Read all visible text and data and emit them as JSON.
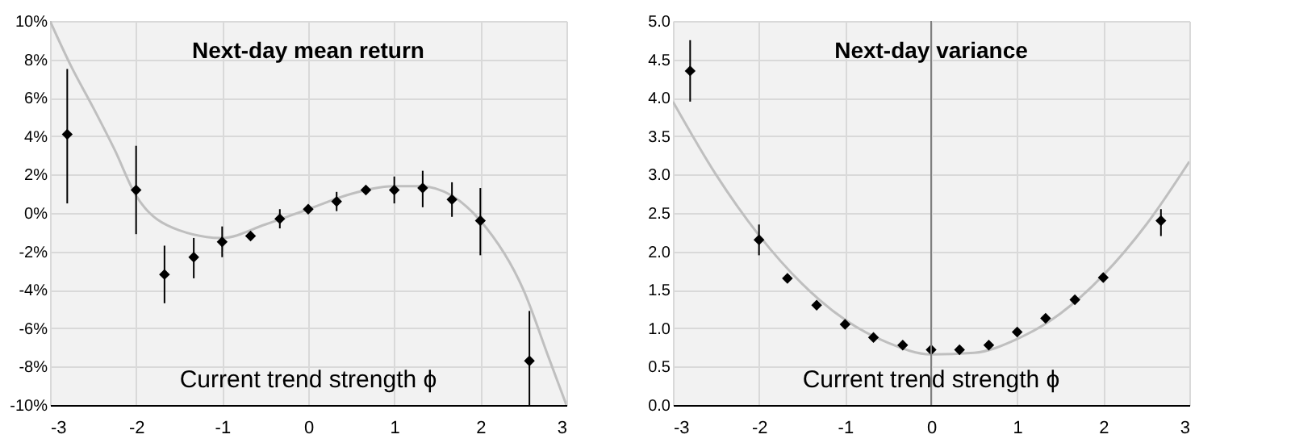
{
  "chart_data": [
    {
      "type": "scatter",
      "title": "Next-day mean return",
      "xlabel": "Current trend strength ϕ",
      "grid": true,
      "xlim": [
        -3,
        3
      ],
      "xticks": [
        -3,
        -2,
        -1,
        0,
        1,
        2,
        3
      ],
      "ylim": [
        -10,
        10
      ],
      "yticks": [
        {
          "value": -10,
          "label": "-10%"
        },
        {
          "value": -8,
          "label": "-8%"
        },
        {
          "value": -6,
          "label": "-6%"
        },
        {
          "value": -4,
          "label": "-4%"
        },
        {
          "value": -2,
          "label": "-2%"
        },
        {
          "value": 0,
          "label": "0%"
        },
        {
          "value": 2,
          "label": "2%"
        },
        {
          "value": 4,
          "label": "4%"
        },
        {
          "value": 6,
          "label": "6%"
        },
        {
          "value": 8,
          "label": "8%"
        },
        {
          "value": 10,
          "label": "10%"
        }
      ],
      "series": [
        {
          "type": "line",
          "color": "#bfbfbf",
          "marker": "none",
          "line_style": "solid",
          "x": [
            -3,
            -2.75,
            -2.5,
            -2.25,
            -2,
            -1.5,
            -1,
            -0.5,
            0,
            0.5,
            1,
            1.3,
            1.67,
            2,
            2.5,
            2.8,
            3
          ],
          "values": [
            10,
            7.6,
            5.5,
            3.3,
            0.9,
            -0.9,
            -1.3,
            -0.6,
            0.2,
            1.0,
            1.4,
            1.4,
            0.9,
            -0.4,
            -4.0,
            -7.6,
            -10
          ]
        },
        {
          "color": "#000000",
          "marker": "diamond",
          "x": [
            -2.8,
            -2,
            -1.67,
            -1.33,
            -1,
            -0.67,
            -0.33,
            0,
            0.33,
            0.67,
            1,
            1.33,
            1.67,
            2,
            2.57
          ],
          "values": [
            4.1,
            1.2,
            -3.2,
            -2.3,
            -1.5,
            -1.2,
            -0.3,
            0.2,
            0.6,
            1.2,
            1.2,
            1.3,
            0.7,
            -0.4,
            -7.7
          ],
          "errors": [
            [
              0.5,
              7.5
            ],
            [
              -1.1,
              3.5
            ],
            [
              -4.7,
              -1.7
            ],
            [
              -3.4,
              -1.3
            ],
            [
              -2.3,
              -0.7
            ],
            null,
            [
              -0.8,
              0.2
            ],
            null,
            [
              0.1,
              1.1
            ],
            null,
            [
              0.5,
              1.9
            ],
            [
              0.3,
              2.2
            ],
            [
              -0.2,
              1.6
            ],
            [
              -2.2,
              1.3
            ],
            [
              -10,
              -5.1
            ]
          ]
        }
      ]
    },
    {
      "type": "scatter",
      "title": "Next-day variance",
      "xlabel": "Current trend strength ϕ",
      "grid": true,
      "xlim": [
        -3,
        3
      ],
      "xticks": [
        -3,
        -2,
        -1,
        0,
        1,
        2,
        3
      ],
      "ylim": [
        0,
        5
      ],
      "yticks": [
        {
          "value": 0,
          "label": "0.0"
        },
        {
          "value": 0.5,
          "label": "0.5"
        },
        {
          "value": 1,
          "label": "1.0"
        },
        {
          "value": 1.5,
          "label": "1.5"
        },
        {
          "value": 2,
          "label": "2.0"
        },
        {
          "value": 2.5,
          "label": "2.5"
        },
        {
          "value": 3,
          "label": "3.0"
        },
        {
          "value": 3.5,
          "label": "3.5"
        },
        {
          "value": 4,
          "label": "4.0"
        },
        {
          "value": 4.5,
          "label": "4.5"
        },
        {
          "value": 5,
          "label": "5.0"
        }
      ],
      "ref_lines": [
        {
          "axis": "x",
          "value": 0,
          "color": "#7f7f7f"
        }
      ],
      "series": [
        {
          "type": "line",
          "color": "#bfbfbf",
          "marker": "none",
          "line_style": "solid",
          "x": [
            -3,
            -2.5,
            -2,
            -1.5,
            -1,
            -0.5,
            0,
            0.5,
            1,
            1.5,
            2,
            2.5,
            3
          ],
          "values": [
            3.95,
            3.0,
            2.21,
            1.58,
            1.11,
            0.81,
            0.66,
            0.68,
            0.86,
            1.19,
            1.69,
            2.35,
            3.17
          ]
        },
        {
          "color": "#000000",
          "marker": "diamond",
          "x": [
            -2.8,
            -2,
            -1.67,
            -1.33,
            -1,
            -0.67,
            -0.33,
            0,
            0.33,
            0.67,
            1,
            1.33,
            1.67,
            2,
            2.67
          ],
          "values": [
            4.35,
            2.15,
            1.65,
            1.3,
            1.05,
            0.88,
            0.78,
            0.72,
            0.72,
            0.78,
            0.95,
            1.13,
            1.37,
            1.66,
            2.4
          ],
          "errors": [
            [
              3.95,
              4.75
            ],
            [
              1.95,
              2.35
            ],
            null,
            null,
            null,
            null,
            null,
            null,
            null,
            null,
            null,
            null,
            null,
            null,
            [
              2.2,
              2.55
            ]
          ]
        }
      ]
    }
  ]
}
